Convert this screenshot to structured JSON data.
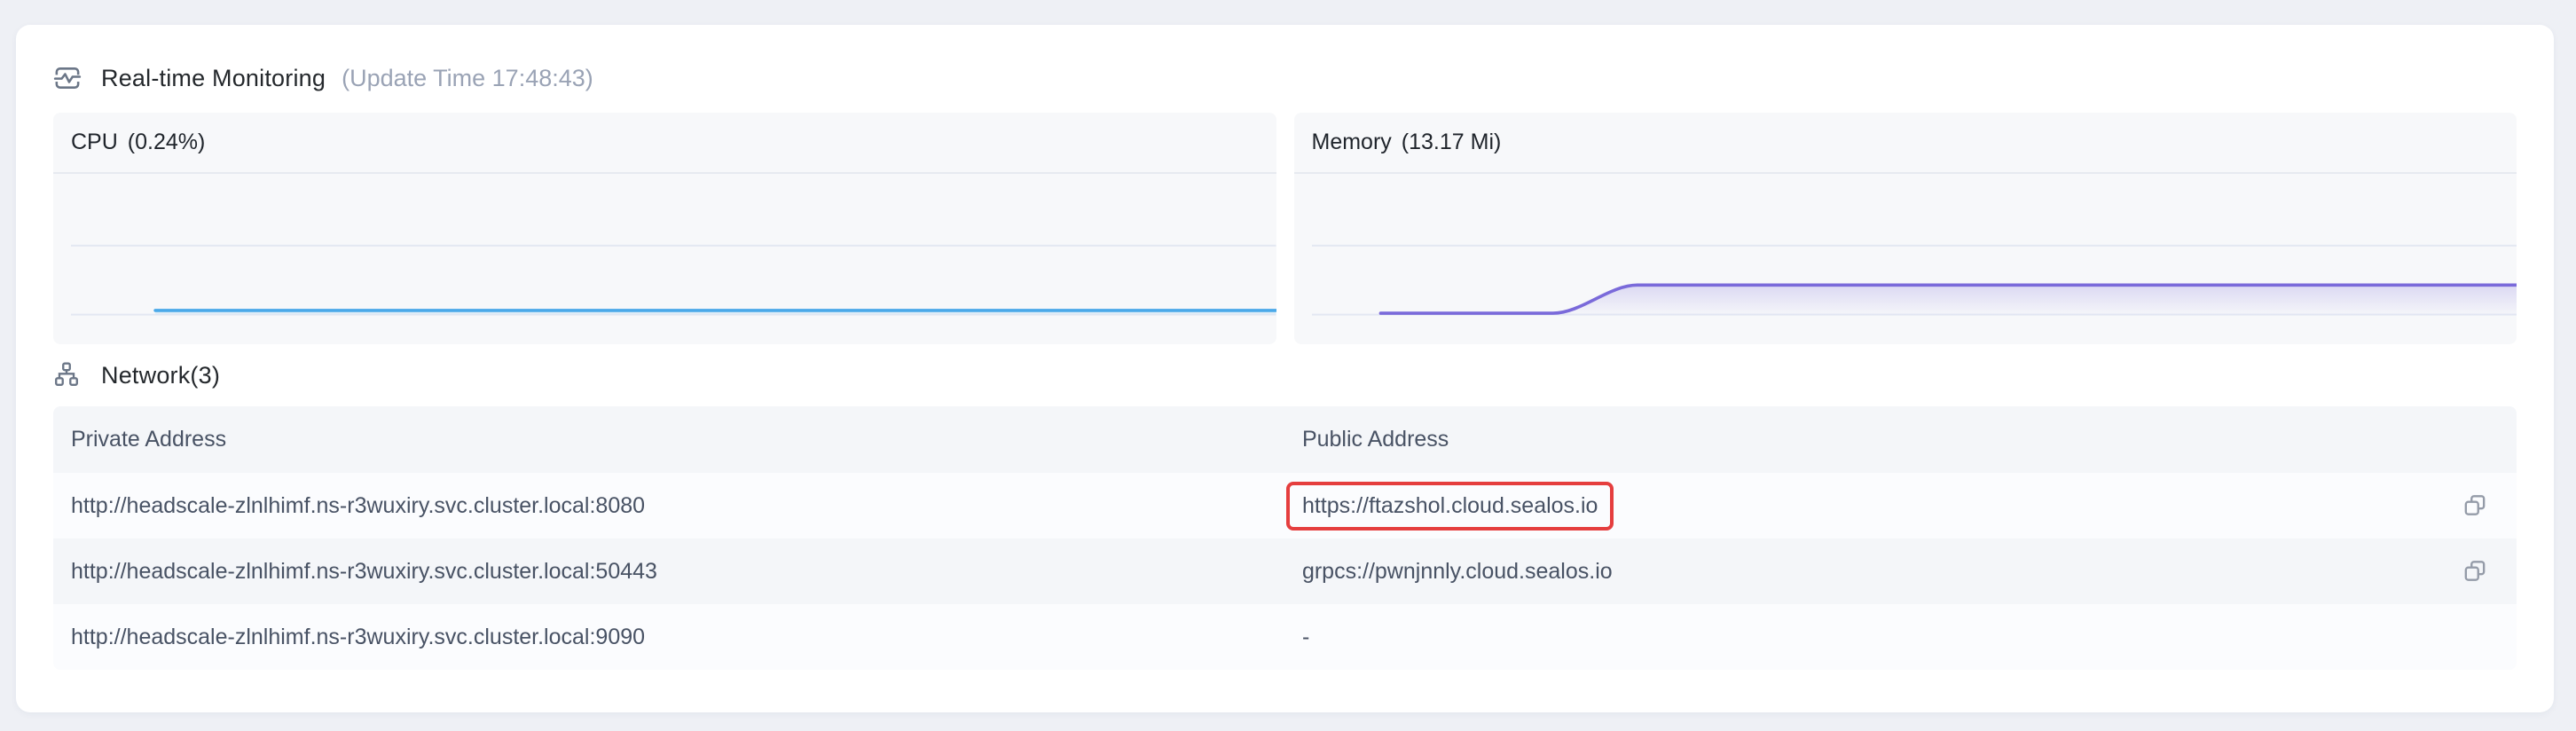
{
  "colors": {
    "page_bg": "#eef0f5",
    "card_bg": "#ffffff",
    "panel_bg": "#f7f8fa",
    "grid_line": "#e3e8f2",
    "cpu_line": "#4aa9e9",
    "memory_line": "#7a6ada",
    "highlight_red": "#e53e3e",
    "text_dark": "#24282c",
    "text_muted": "#9aa3b5",
    "text_table": "#485264"
  },
  "monitoring": {
    "title": "Real-time Monitoring",
    "update_time_label": "(Update Time  17:48:43)"
  },
  "chart_data": [
    {
      "type": "area",
      "title": "CPU",
      "value_label": "(0.24%)",
      "line_color": "#4aa9e9",
      "fill_opacity_top": 0.3,
      "legend": "none",
      "grid": "horizontal",
      "axis_labels": "none",
      "points": [
        [
          0.07,
          0.03
        ],
        [
          1.0,
          0.03
        ]
      ]
    },
    {
      "type": "area",
      "title": "Memory",
      "value_label": "(13.17 Mi)",
      "line_color": "#7a6ada",
      "fill_opacity_top": 0.22,
      "legend": "none",
      "grid": "horizontal",
      "axis_labels": "none",
      "points": [
        [
          0.057,
          0.01
        ],
        [
          0.2,
          0.01
        ],
        [
          0.27,
          0.21
        ],
        [
          1.0,
          0.21
        ]
      ]
    }
  ],
  "network": {
    "title": "Network(3)",
    "table": {
      "headers": [
        "Private Address",
        "Public Address"
      ],
      "rows": [
        {
          "private": "http://headscale-zlnlhimf.ns-r3wuxiry.svc.cluster.local:8080",
          "public": "https://ftazshol.cloud.sealos.io",
          "public_highlighted": true,
          "has_copy": true
        },
        {
          "private": "http://headscale-zlnlhimf.ns-r3wuxiry.svc.cluster.local:50443",
          "public": "grpcs://pwnjnnly.cloud.sealos.io",
          "public_highlighted": false,
          "has_copy": true
        },
        {
          "private": "http://headscale-zlnlhimf.ns-r3wuxiry.svc.cluster.local:9090",
          "public": "-",
          "public_highlighted": false,
          "has_copy": false
        }
      ]
    }
  }
}
